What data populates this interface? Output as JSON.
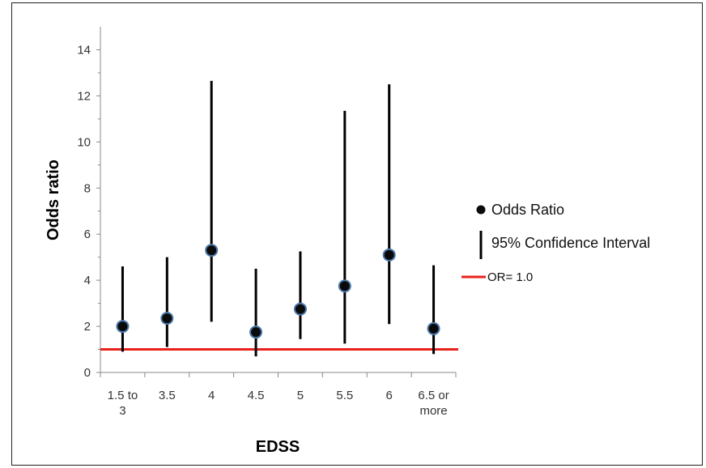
{
  "chart_data": {
    "type": "scatter",
    "xlabel": "EDSS",
    "ylabel": "Odds ratio",
    "categories": [
      "1.5 to 3",
      "3.5",
      "4",
      "4.5",
      "5",
      "5.5",
      "6",
      "6.5 or more"
    ],
    "odds_ratio": [
      2.0,
      2.35,
      5.3,
      1.75,
      2.75,
      3.75,
      5.1,
      1.9
    ],
    "ci_lower": [
      0.9,
      1.1,
      2.2,
      0.7,
      1.45,
      1.25,
      2.1,
      0.8
    ],
    "ci_upper": [
      4.6,
      5.0,
      12.65,
      4.5,
      5.25,
      11.35,
      12.5,
      4.65
    ],
    "reference_line": {
      "value": 1.0,
      "label": "OR= 1.0",
      "color": "#e8221b"
    },
    "ylim": [
      0,
      15
    ],
    "yticks": [
      0,
      2,
      4,
      6,
      8,
      10,
      12,
      14
    ],
    "grid": false,
    "legend": {
      "placement": "right",
      "items": [
        {
          "label": "Odds Ratio",
          "symbol": "circle"
        },
        {
          "label": "95% Confidence Interval",
          "symbol": "line"
        },
        {
          "label": "OR= 1.0",
          "symbol": "red-line"
        }
      ]
    },
    "colors": {
      "marker_fill": "#0a0a0a",
      "marker_edge": "#4a76a8",
      "ci_line": "#000000",
      "axis": "#888888"
    }
  }
}
